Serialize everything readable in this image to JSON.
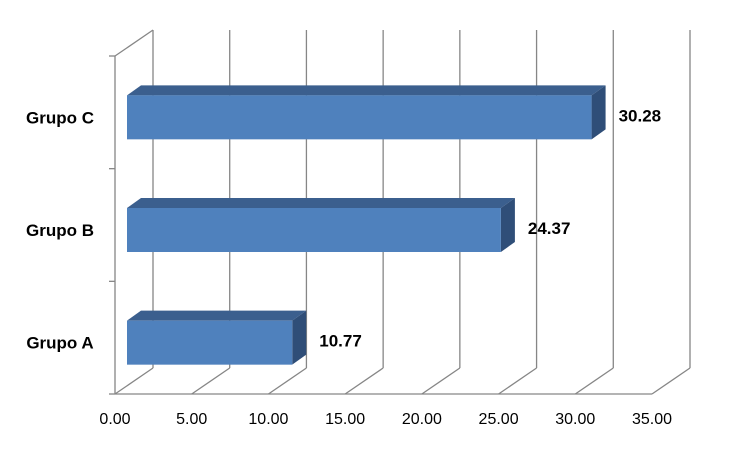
{
  "chart_data": {
    "type": "bar",
    "orientation": "horizontal",
    "style": "3d",
    "categories": [
      "Grupo A",
      "Grupo B",
      "Grupo C"
    ],
    "values": [
      10.77,
      24.37,
      30.28
    ],
    "data_labels": [
      "10.77",
      "24.37",
      "30.28"
    ],
    "x_ticks": [
      "0.00",
      "5.00",
      "10.00",
      "15.00",
      "20.00",
      "25.00",
      "30.00",
      "35.00"
    ],
    "xlim": [
      0,
      35
    ],
    "title": "",
    "xlabel": "",
    "ylabel": "",
    "grid": true,
    "legend": "none",
    "bar_color": "#4F81BD",
    "bar_top_color": "#3B5F8E",
    "bar_side_color": "#2F4E78"
  }
}
